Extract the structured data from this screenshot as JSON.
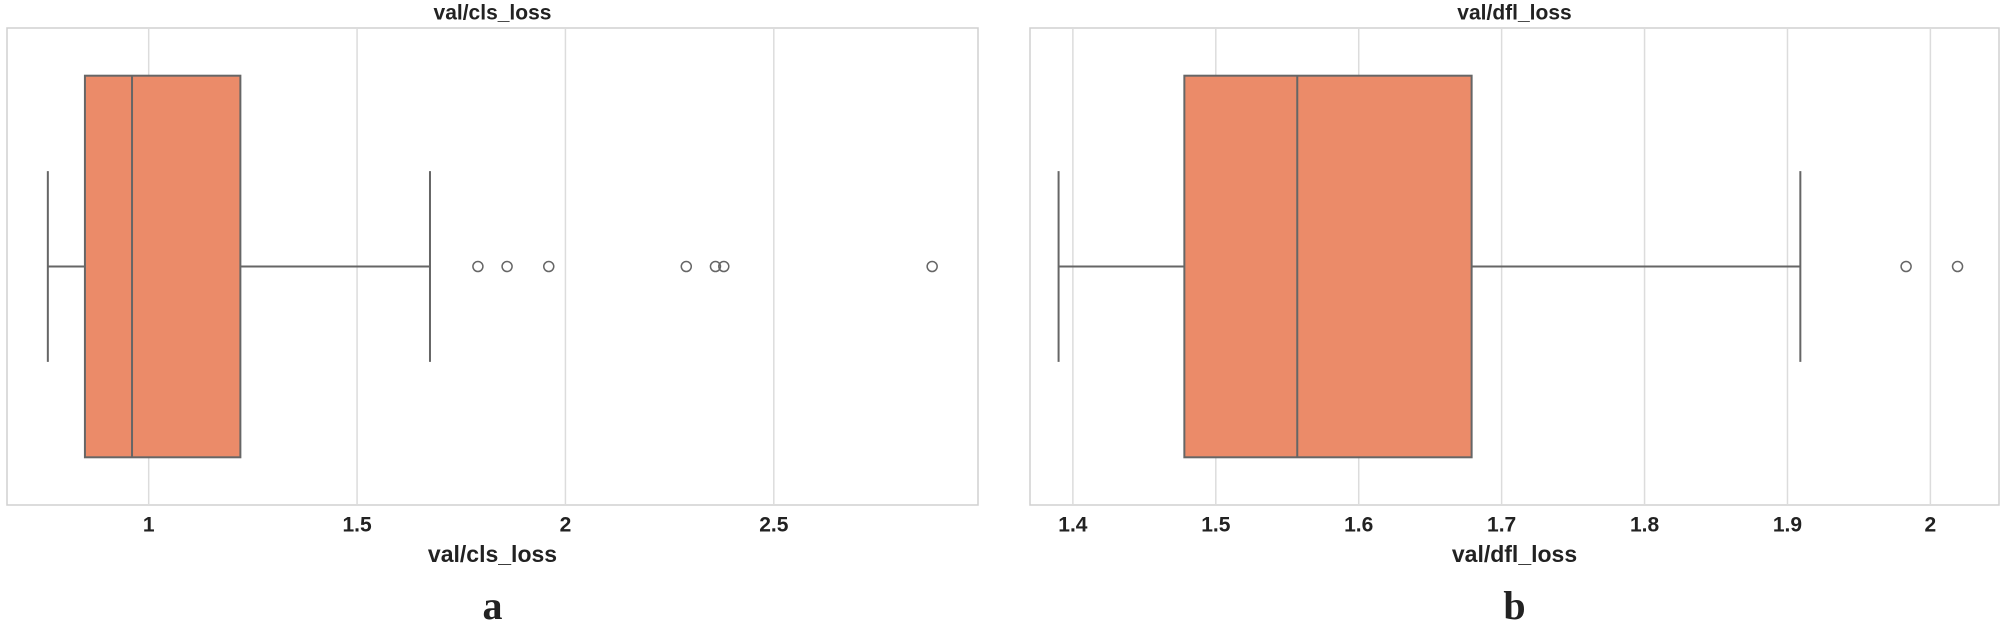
{
  "chart_data": [
    {
      "type": "box",
      "title": "val/cls_loss",
      "xlabel": "val/cls_loss",
      "panel_label": "a",
      "color": "#eb8b69",
      "edge_color": "#666666",
      "grid": true,
      "xlim": [
        0.66,
        2.99
      ],
      "xticks": [
        1.0,
        1.5,
        2.0,
        2.5
      ],
      "whislo": 0.758,
      "q1": 0.847,
      "median": 0.96,
      "q3": 1.22,
      "whishi": 1.675,
      "fliers": [
        1.79,
        1.86,
        1.96,
        2.29,
        2.36,
        2.38,
        2.88
      ]
    },
    {
      "type": "box",
      "title": "val/dfl_loss",
      "xlabel": "val/dfl_loss",
      "panel_label": "b",
      "color": "#eb8b69",
      "edge_color": "#666666",
      "grid": true,
      "xlim": [
        1.37,
        2.048
      ],
      "xticks": [
        1.4,
        1.5,
        1.6,
        1.7,
        1.8,
        1.9,
        2.0
      ],
      "whislo": 1.39,
      "q1": 1.478,
      "median": 1.557,
      "q3": 1.679,
      "whishi": 1.909,
      "fliers": [
        1.983,
        2.019
      ]
    }
  ]
}
